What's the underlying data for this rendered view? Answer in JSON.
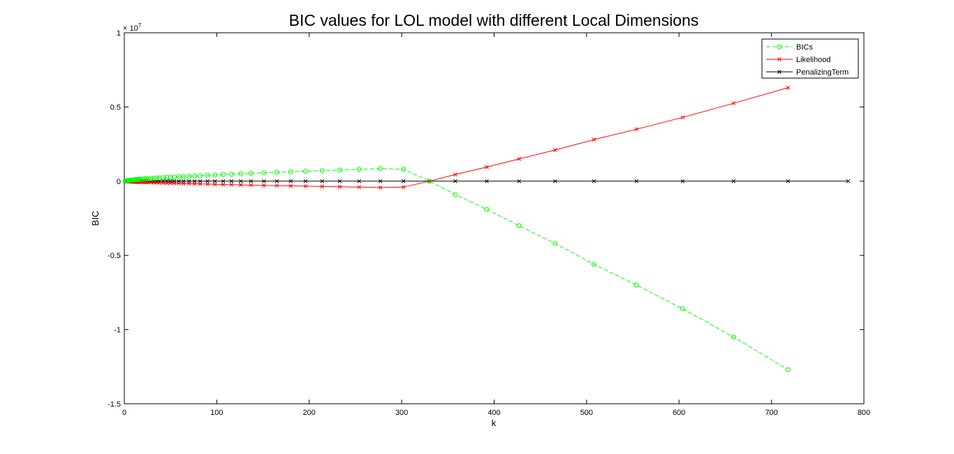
{
  "chart_data": {
    "type": "line",
    "title": "BIC values for LOL model with different Local Dimensions",
    "xlabel": "k",
    "ylabel": "BIC",
    "xlim": [
      0,
      800
    ],
    "ylim": [
      -15000000,
      10000000
    ],
    "x_ticks": [
      "0",
      "100",
      "200",
      "300",
      "400",
      "500",
      "600",
      "700",
      "800"
    ],
    "y_ticks": [
      "-1.5",
      "-1",
      "-0.5",
      "0",
      "0.5",
      "1"
    ],
    "y_exponent_base": "× 10",
    "y_exponent_power": "7",
    "grid": false,
    "legend_position": "top-right",
    "series": [
      {
        "name": "BICs",
        "color": "#00ff00",
        "line_style": "dashed",
        "marker": "circle",
        "x": [
          1,
          2,
          3,
          4,
          5,
          6,
          7,
          8,
          9,
          10,
          11,
          12,
          13,
          14,
          15,
          16,
          18,
          20,
          22,
          24,
          26,
          29,
          32,
          35,
          38,
          42,
          46,
          50,
          54,
          59,
          64,
          70,
          76,
          82,
          90,
          98,
          107,
          116,
          126,
          137,
          151,
          165,
          180,
          196,
          214,
          233,
          254,
          277,
          302,
          330,
          358,
          392,
          427,
          466,
          508,
          554,
          604,
          659,
          718
        ],
        "y": [
          10000,
          20000,
          30000,
          40000,
          50000,
          60000,
          65000,
          70000,
          80000,
          90000,
          95000,
          100000,
          105000,
          110000,
          115000,
          120000,
          130000,
          140000,
          150000,
          160000,
          170000,
          180000,
          195000,
          210000,
          220000,
          235000,
          250000,
          265000,
          280000,
          300000,
          315000,
          330000,
          350000,
          370000,
          400000,
          420000,
          450000,
          470000,
          500000,
          530000,
          570000,
          600000,
          630000,
          670000,
          710000,
          750000,
          800000,
          850000,
          800000,
          0,
          -900000,
          -1900000,
          -3000000,
          -4200000,
          -5600000,
          -7000000,
          -8600000,
          -10500000,
          -12700000
        ]
      },
      {
        "name": "Likelihood",
        "color": "#ff0000",
        "line_style": "solid",
        "marker": "x",
        "x": [
          1,
          2,
          3,
          4,
          5,
          6,
          7,
          8,
          9,
          10,
          11,
          12,
          13,
          14,
          15,
          16,
          18,
          20,
          22,
          24,
          26,
          29,
          32,
          35,
          38,
          42,
          46,
          50,
          54,
          59,
          64,
          70,
          76,
          82,
          90,
          98,
          107,
          116,
          126,
          137,
          151,
          165,
          180,
          196,
          214,
          233,
          254,
          277,
          302,
          330,
          358,
          392,
          427,
          466,
          508,
          554,
          604,
          659,
          718
        ],
        "y": [
          -5000,
          -10000,
          -15000,
          -20000,
          -25000,
          -30000,
          -32000,
          -35000,
          -40000,
          -45000,
          -48000,
          -50000,
          -52000,
          -55000,
          -58000,
          -60000,
          -65000,
          -70000,
          -75000,
          -80000,
          -85000,
          -90000,
          -97000,
          -105000,
          -110000,
          -117000,
          -125000,
          -132000,
          -140000,
          -150000,
          -157000,
          -165000,
          -175000,
          -185000,
          -200000,
          -210000,
          -225000,
          -235000,
          -250000,
          -265000,
          -285000,
          -300000,
          -315000,
          -335000,
          -355000,
          -375000,
          -400000,
          -425000,
          -400000,
          0,
          450000,
          950000,
          1500000,
          2100000,
          2800000,
          3500000,
          4300000,
          5250000,
          6300000
        ]
      },
      {
        "name": "PenalizingTerm",
        "color": "#000000",
        "line_style": "solid",
        "marker": "x",
        "x": [
          1,
          2,
          3,
          4,
          5,
          6,
          7,
          8,
          9,
          10,
          11,
          12,
          13,
          14,
          15,
          16,
          18,
          20,
          22,
          24,
          26,
          29,
          32,
          35,
          38,
          42,
          46,
          50,
          54,
          59,
          64,
          70,
          76,
          82,
          90,
          98,
          107,
          116,
          126,
          137,
          151,
          165,
          180,
          196,
          214,
          233,
          254,
          277,
          302,
          330,
          358,
          392,
          427,
          466,
          508,
          554,
          604,
          659,
          718,
          783
        ],
        "y": [
          0,
          0,
          0,
          0,
          0,
          0,
          0,
          0,
          0,
          0,
          0,
          0,
          0,
          0,
          0,
          0,
          0,
          0,
          0,
          0,
          0,
          0,
          0,
          0,
          0,
          0,
          0,
          0,
          0,
          0,
          0,
          0,
          0,
          0,
          0,
          0,
          0,
          0,
          0,
          0,
          0,
          0,
          0,
          0,
          0,
          0,
          0,
          0,
          0,
          0,
          0,
          0,
          0,
          0,
          0,
          0,
          0,
          0,
          0,
          0
        ]
      }
    ]
  }
}
